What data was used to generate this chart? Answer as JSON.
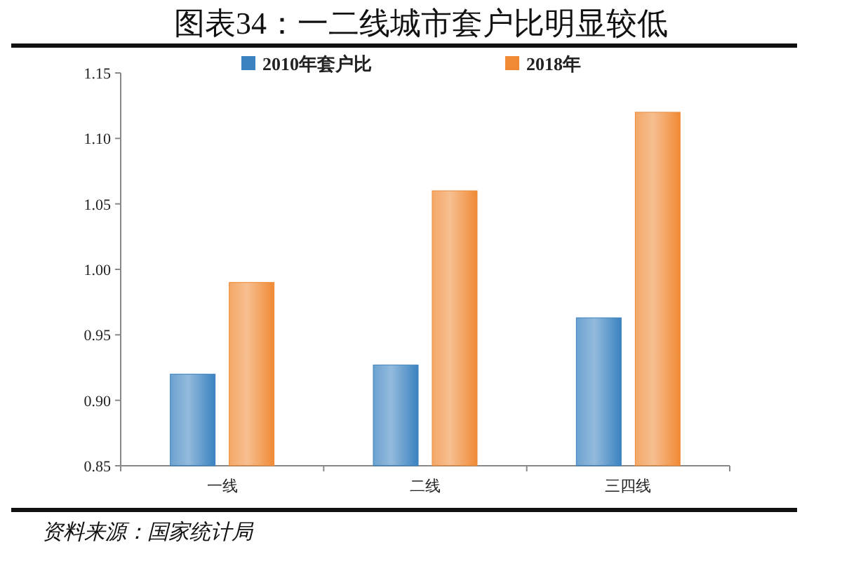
{
  "chart_data": {
    "type": "bar",
    "title": "图表34：一二线城市套户比明显较低",
    "categories": [
      "一线",
      "二线",
      "三四线"
    ],
    "series": [
      {
        "name": "2010年套户比",
        "color": "#3a82c0",
        "values": [
          0.92,
          0.927,
          0.963
        ]
      },
      {
        "name": "2018年",
        "color": "#f08a35",
        "values": [
          0.99,
          1.06,
          1.12
        ]
      }
    ],
    "ylim": [
      0.85,
      1.15
    ],
    "yticks": [
      {
        "value": 0.85,
        "label": "0.85"
      },
      {
        "value": 0.9,
        "label": "0.90"
      },
      {
        "value": 0.95,
        "label": "0.95"
      },
      {
        "value": 1.0,
        "label": "1.00"
      },
      {
        "value": 1.05,
        "label": "1.05"
      },
      {
        "value": 1.1,
        "label": "1.10"
      },
      {
        "value": 1.15,
        "label": "1.15"
      }
    ],
    "grid": false,
    "legend": "top",
    "annotations": [
      "资料来源：国家统计局"
    ]
  }
}
